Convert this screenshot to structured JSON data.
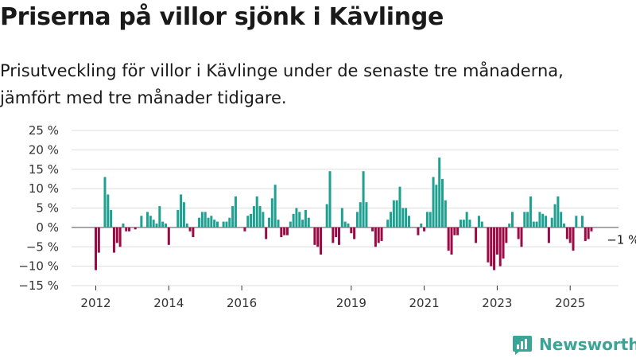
{
  "header": {
    "title": "Priserna på villor sjönk i Kävlinge",
    "subtitle": "Prisutveckling för villor i Kävlinge under de senaste tre månaderna, jämfört med tre månader tidigare."
  },
  "brand": {
    "logo_text": "Newsworthy",
    "logo_icon": "newsworthy-logo-icon",
    "color": "#3aa597"
  },
  "colors": {
    "positive": "#1fa192",
    "negative": "#9b0a45",
    "grid": "#dddddd",
    "axis": "#333333"
  },
  "chart_data": {
    "type": "bar",
    "title": "Priserna på villor sjönk i Kävlinge",
    "xlabel": "",
    "ylabel": "",
    "ylim": [
      -15,
      25
    ],
    "yticks": [
      -15,
      -10,
      -5,
      0,
      5,
      10,
      15,
      20,
      25
    ],
    "ytick_labels": [
      "−15 %",
      "−10 %",
      "−5 %",
      "0 %",
      "5 %",
      "10 %",
      "15 %",
      "20 %",
      "25 %"
    ],
    "xticks": [
      2012,
      2014,
      2016,
      2019,
      2021,
      2023,
      2025
    ],
    "x_start": 2012.0,
    "x_step": 0.08333,
    "grid": true,
    "values": [
      -11,
      -6.5,
      0,
      13,
      8.5,
      4.5,
      -6.5,
      -4,
      -5,
      1,
      -1,
      -1,
      0,
      -0.5,
      0,
      3,
      0,
      4,
      3,
      2,
      1,
      5.5,
      1.5,
      1,
      -4.5,
      0,
      0,
      4.5,
      8.5,
      6.5,
      1,
      -1,
      -2.5,
      0,
      2.5,
      4,
      4,
      2.5,
      3,
      2,
      1.5,
      0,
      1.5,
      1.5,
      2.5,
      5.5,
      8,
      0,
      0,
      -1,
      3,
      3.5,
      5.5,
      8,
      5.5,
      4,
      -3,
      2.5,
      7.5,
      11,
      2,
      -2.5,
      -2,
      -2,
      1.5,
      3.5,
      5,
      4,
      2,
      4.5,
      2.5,
      0,
      -4.5,
      -5,
      -7,
      0,
      6,
      14.5,
      -4,
      -2.5,
      -4.5,
      5,
      1.5,
      1,
      -1.5,
      -3,
      4,
      6.5,
      14.5,
      6.5,
      0,
      -1,
      -5,
      -4,
      -3.5,
      0,
      2,
      4,
      7,
      7,
      10.5,
      5,
      5,
      3,
      0,
      0,
      -2,
      1,
      -1,
      4,
      4,
      13,
      11,
      18,
      12.5,
      7,
      -6,
      -7,
      -2,
      -2,
      2,
      2,
      4,
      2,
      0,
      -4,
      3,
      1.5,
      0,
      -9,
      -10,
      -11,
      -7,
      -10,
      -8,
      -4,
      1,
      4,
      0,
      -3,
      -5,
      4,
      4,
      8,
      1.5,
      1.5,
      4,
      3.5,
      3,
      -4,
      2.5,
      6,
      8,
      4,
      1,
      -3,
      -4,
      -6,
      3,
      0,
      3,
      -3.5,
      -3,
      -1
    ],
    "annotations": [
      {
        "label": "−1 %",
        "index": 167
      }
    ]
  }
}
